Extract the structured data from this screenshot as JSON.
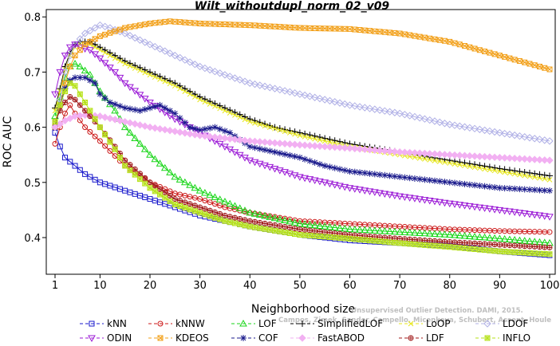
{
  "chart_data": {
    "type": "line",
    "title": "Wilt_withoutdupl_norm_02_v09",
    "xlabel": "Neighborhood size",
    "ylabel": "ROC AUC",
    "xlim": [
      1,
      100
    ],
    "ylim": [
      0.35,
      0.8
    ],
    "xticks": [
      1,
      10,
      20,
      30,
      40,
      50,
      60,
      70,
      80,
      90,
      100
    ],
    "yticks": [
      0.4,
      0.5,
      0.6,
      0.7,
      0.8
    ],
    "x_step": 1,
    "legend_position": "bottom",
    "watermark": [
      "Campos, Zimek, Sander, Campello, Micenkova, Schubert, Assent, Houle",
      "Unsupervised Outlier Detection. DAMI, 2015."
    ],
    "series": [
      {
        "name": "kNN",
        "color": "#1a1acc",
        "marker": "square",
        "values": [
          [
            1,
            0.59
          ],
          [
            2,
            0.565
          ],
          [
            3,
            0.545
          ],
          [
            5,
            0.53
          ],
          [
            7,
            0.515
          ],
          [
            10,
            0.5
          ],
          [
            15,
            0.485
          ],
          [
            20,
            0.47
          ],
          [
            25,
            0.455
          ],
          [
            30,
            0.44
          ],
          [
            35,
            0.43
          ],
          [
            40,
            0.42
          ],
          [
            50,
            0.405
          ],
          [
            60,
            0.395
          ],
          [
            70,
            0.39
          ],
          [
            80,
            0.385
          ],
          [
            90,
            0.375
          ],
          [
            100,
            0.368
          ]
        ]
      },
      {
        "name": "kNNW",
        "color": "#cc1a1a",
        "marker": "circle",
        "values": [
          [
            1,
            0.57
          ],
          [
            2,
            0.6
          ],
          [
            3,
            0.625
          ],
          [
            4,
            0.64
          ],
          [
            5,
            0.625
          ],
          [
            7,
            0.6
          ],
          [
            10,
            0.575
          ],
          [
            15,
            0.53
          ],
          [
            20,
            0.5
          ],
          [
            25,
            0.48
          ],
          [
            30,
            0.47
          ],
          [
            35,
            0.455
          ],
          [
            40,
            0.445
          ],
          [
            50,
            0.43
          ],
          [
            60,
            0.425
          ],
          [
            70,
            0.42
          ],
          [
            80,
            0.415
          ],
          [
            90,
            0.412
          ],
          [
            100,
            0.41
          ]
        ]
      },
      {
        "name": "LOF",
        "color": "#1ad61a",
        "marker": "triangle",
        "values": [
          [
            1,
            0.62
          ],
          [
            2,
            0.655
          ],
          [
            3,
            0.69
          ],
          [
            4,
            0.71
          ],
          [
            5,
            0.715
          ],
          [
            6,
            0.71
          ],
          [
            8,
            0.695
          ],
          [
            10,
            0.665
          ],
          [
            13,
            0.63
          ],
          [
            15,
            0.6
          ],
          [
            18,
            0.57
          ],
          [
            20,
            0.55
          ],
          [
            25,
            0.51
          ],
          [
            30,
            0.485
          ],
          [
            35,
            0.465
          ],
          [
            40,
            0.445
          ],
          [
            50,
            0.425
          ],
          [
            60,
            0.415
          ],
          [
            70,
            0.41
          ],
          [
            80,
            0.405
          ],
          [
            90,
            0.398
          ],
          [
            100,
            0.39
          ]
        ]
      },
      {
        "name": "SimplifiedLOF",
        "color": "#000000",
        "marker": "plus",
        "values": [
          [
            1,
            0.635
          ],
          [
            2,
            0.67
          ],
          [
            3,
            0.71
          ],
          [
            4,
            0.735
          ],
          [
            5,
            0.75
          ],
          [
            6,
            0.755
          ],
          [
            8,
            0.755
          ],
          [
            10,
            0.745
          ],
          [
            12,
            0.735
          ],
          [
            15,
            0.72
          ],
          [
            20,
            0.7
          ],
          [
            25,
            0.68
          ],
          [
            30,
            0.655
          ],
          [
            35,
            0.635
          ],
          [
            40,
            0.615
          ],
          [
            45,
            0.6
          ],
          [
            50,
            0.59
          ],
          [
            60,
            0.57
          ],
          [
            70,
            0.555
          ],
          [
            80,
            0.54
          ],
          [
            90,
            0.525
          ],
          [
            100,
            0.512
          ]
        ]
      },
      {
        "name": "LoOP",
        "color": "#e6e61a",
        "marker": "x",
        "values": [
          [
            1,
            0.63
          ],
          [
            2,
            0.665
          ],
          [
            3,
            0.705
          ],
          [
            4,
            0.73
          ],
          [
            5,
            0.745
          ],
          [
            6,
            0.75
          ],
          [
            8,
            0.75
          ],
          [
            10,
            0.74
          ],
          [
            15,
            0.715
          ],
          [
            20,
            0.695
          ],
          [
            25,
            0.675
          ],
          [
            30,
            0.65
          ],
          [
            35,
            0.63
          ],
          [
            40,
            0.61
          ],
          [
            50,
            0.585
          ],
          [
            60,
            0.565
          ],
          [
            70,
            0.55
          ],
          [
            80,
            0.535
          ],
          [
            90,
            0.52
          ],
          [
            100,
            0.505
          ]
        ]
      },
      {
        "name": "LDOF",
        "color": "#b0b0e6",
        "marker": "diamond",
        "values": [
          [
            1,
            0.6
          ],
          [
            2,
            0.65
          ],
          [
            3,
            0.7
          ],
          [
            4,
            0.73
          ],
          [
            5,
            0.75
          ],
          [
            7,
            0.77
          ],
          [
            9,
            0.78
          ],
          [
            10,
            0.785
          ],
          [
            12,
            0.78
          ],
          [
            15,
            0.77
          ],
          [
            20,
            0.75
          ],
          [
            25,
            0.73
          ],
          [
            30,
            0.71
          ],
          [
            35,
            0.695
          ],
          [
            40,
            0.68
          ],
          [
            50,
            0.66
          ],
          [
            60,
            0.64
          ],
          [
            70,
            0.625
          ],
          [
            80,
            0.605
          ],
          [
            90,
            0.59
          ],
          [
            100,
            0.575
          ]
        ]
      },
      {
        "name": "ODIN",
        "color": "#9b1ad6",
        "marker": "triangle-down",
        "values": [
          [
            1,
            0.66
          ],
          [
            2,
            0.7
          ],
          [
            3,
            0.73
          ],
          [
            4,
            0.745
          ],
          [
            5,
            0.75
          ],
          [
            6,
            0.745
          ],
          [
            8,
            0.74
          ],
          [
            10,
            0.725
          ],
          [
            13,
            0.7
          ],
          [
            15,
            0.68
          ],
          [
            20,
            0.645
          ],
          [
            25,
            0.615
          ],
          [
            30,
            0.59
          ],
          [
            35,
            0.565
          ],
          [
            40,
            0.54
          ],
          [
            50,
            0.51
          ],
          [
            60,
            0.49
          ],
          [
            70,
            0.475
          ],
          [
            80,
            0.462
          ],
          [
            90,
            0.45
          ],
          [
            100,
            0.438
          ]
        ]
      },
      {
        "name": "KDEOS",
        "color": "#f2a01a",
        "marker": "square-x",
        "values": [
          [
            1,
            0.6
          ],
          [
            2,
            0.64
          ],
          [
            3,
            0.68
          ],
          [
            4,
            0.71
          ],
          [
            5,
            0.73
          ],
          [
            7,
            0.75
          ],
          [
            10,
            0.765
          ],
          [
            15,
            0.78
          ],
          [
            20,
            0.788
          ],
          [
            24,
            0.792
          ],
          [
            30,
            0.788
          ],
          [
            40,
            0.785
          ],
          [
            50,
            0.78
          ],
          [
            60,
            0.778
          ],
          [
            70,
            0.77
          ],
          [
            80,
            0.755
          ],
          [
            90,
            0.73
          ],
          [
            100,
            0.705
          ]
        ]
      },
      {
        "name": "COF",
        "color": "#1a1a8c",
        "marker": "asterisk",
        "values": [
          [
            1,
            0.6
          ],
          [
            2,
            0.64
          ],
          [
            3,
            0.67
          ],
          [
            4,
            0.685
          ],
          [
            5,
            0.69
          ],
          [
            7,
            0.69
          ],
          [
            9,
            0.68
          ],
          [
            10,
            0.66
          ],
          [
            12,
            0.645
          ],
          [
            15,
            0.635
          ],
          [
            18,
            0.63
          ],
          [
            20,
            0.635
          ],
          [
            22,
            0.64
          ],
          [
            25,
            0.625
          ],
          [
            28,
            0.6
          ],
          [
            30,
            0.595
          ],
          [
            33,
            0.6
          ],
          [
            36,
            0.59
          ],
          [
            40,
            0.565
          ],
          [
            45,
            0.555
          ],
          [
            50,
            0.545
          ],
          [
            55,
            0.53
          ],
          [
            60,
            0.52
          ],
          [
            70,
            0.51
          ],
          [
            80,
            0.5
          ],
          [
            90,
            0.49
          ],
          [
            100,
            0.485
          ]
        ]
      },
      {
        "name": "FastABOD",
        "color": "#f2b0f2",
        "marker": "diamond-filled",
        "values": [
          [
            1,
            0.6
          ],
          [
            3,
            0.612
          ],
          [
            5,
            0.62
          ],
          [
            7,
            0.622
          ],
          [
            10,
            0.62
          ],
          [
            15,
            0.61
          ],
          [
            20,
            0.6
          ],
          [
            30,
            0.585
          ],
          [
            40,
            0.575
          ],
          [
            50,
            0.568
          ],
          [
            60,
            0.562
          ],
          [
            70,
            0.555
          ],
          [
            80,
            0.55
          ],
          [
            90,
            0.545
          ],
          [
            100,
            0.54
          ]
        ]
      },
      {
        "name": "LDF",
        "color": "#a01a1a",
        "marker": "circle-plus",
        "values": [
          [
            1,
            0.61
          ],
          [
            2,
            0.63
          ],
          [
            3,
            0.645
          ],
          [
            4,
            0.655
          ],
          [
            5,
            0.65
          ],
          [
            7,
            0.63
          ],
          [
            10,
            0.6
          ],
          [
            13,
            0.565
          ],
          [
            15,
            0.54
          ],
          [
            20,
            0.5
          ],
          [
            25,
            0.47
          ],
          [
            30,
            0.455
          ],
          [
            35,
            0.44
          ],
          [
            40,
            0.43
          ],
          [
            50,
            0.415
          ],
          [
            60,
            0.405
          ],
          [
            70,
            0.398
          ],
          [
            80,
            0.392
          ],
          [
            90,
            0.387
          ],
          [
            100,
            0.382
          ]
        ]
      },
      {
        "name": "INFLO",
        "color": "#b6e21a",
        "marker": "square-star",
        "values": [
          [
            1,
            0.61
          ],
          [
            2,
            0.64
          ],
          [
            3,
            0.665
          ],
          [
            4,
            0.68
          ],
          [
            5,
            0.675
          ],
          [
            7,
            0.645
          ],
          [
            10,
            0.6
          ],
          [
            13,
            0.56
          ],
          [
            15,
            0.53
          ],
          [
            20,
            0.49
          ],
          [
            25,
            0.46
          ],
          [
            30,
            0.445
          ],
          [
            35,
            0.43
          ],
          [
            40,
            0.42
          ],
          [
            50,
            0.405
          ],
          [
            60,
            0.398
          ],
          [
            70,
            0.39
          ],
          [
            80,
            0.383
          ],
          [
            90,
            0.375
          ],
          [
            100,
            0.37
          ]
        ]
      }
    ]
  }
}
